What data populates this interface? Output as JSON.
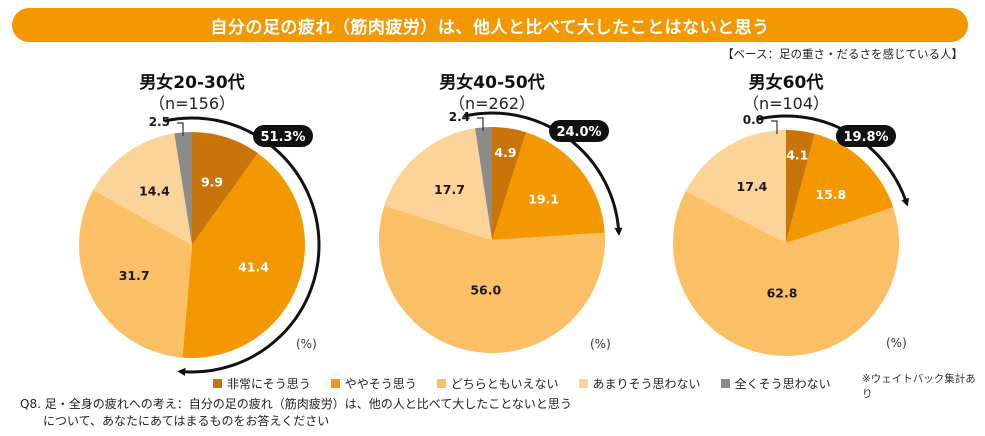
{
  "header": {
    "title": "自分の足の疲れ（筋肉疲労）は、他人と比べて大したことはないと思う",
    "base_note": "【ベース：足の重さ・だるさを感じている人】"
  },
  "unit_label": "(%)",
  "legend": [
    {
      "label": "非常にそう思う",
      "color": "#c8740a"
    },
    {
      "label": "ややそう思う",
      "color": "#f39800"
    },
    {
      "label": "どちらともいえない",
      "color": "#fbbf66"
    },
    {
      "label": "あまりそう思わない",
      "color": "#fcd49a"
    },
    {
      "label": "全くそう思わない",
      "color": "#8c8c8c"
    }
  ],
  "weight_note": "※ウェイトバック集計あり",
  "question": {
    "line1": "Q8. 足・全身の疲れへの考え：自分の足の疲れ（筋肉疲労）は、他の人と比べて大したことないと思う",
    "line2": "について、あなたにあてはまるものをお答えください"
  },
  "chart_data": [
    {
      "type": "pie",
      "title": "男女20-30代",
      "n_label": "（n=156）",
      "categories": [
        "非常にそう思う",
        "ややそう思う",
        "どちらともいえない",
        "あまりそう思わない",
        "全くそう思わない"
      ],
      "values": [
        9.9,
        41.4,
        31.7,
        14.4,
        2.5
      ],
      "value_labels": [
        "9.9",
        "41.4",
        "31.7",
        "14.4",
        "2.5"
      ],
      "highlight_total": "51.3%",
      "start": "12 o'clock",
      "direction": "clockwise"
    },
    {
      "type": "pie",
      "title": "男女40-50代",
      "n_label": "（n=262）",
      "categories": [
        "非常にそう思う",
        "ややそう思う",
        "どちらともいえない",
        "あまりそう思わない",
        "全くそう思わない"
      ],
      "values": [
        4.9,
        19.1,
        56.0,
        17.7,
        2.4
      ],
      "value_labels": [
        "4.9",
        "19.1",
        "56.0",
        "17.7",
        "2.4"
      ],
      "highlight_total": "24.0%",
      "start": "12 o'clock",
      "direction": "clockwise"
    },
    {
      "type": "pie",
      "title": "男女60代",
      "n_label": "（n=104）",
      "categories": [
        "非常にそう思う",
        "ややそう思う",
        "どちらともいえない",
        "あまりそう思わない",
        "全くそう思わない"
      ],
      "values": [
        4.1,
        15.8,
        62.8,
        17.4,
        0.0
      ],
      "value_labels": [
        "4.1",
        "15.8",
        "62.8",
        "17.4",
        "0.0"
      ],
      "highlight_total": "19.8%",
      "start": "12 o'clock",
      "direction": "clockwise"
    }
  ]
}
